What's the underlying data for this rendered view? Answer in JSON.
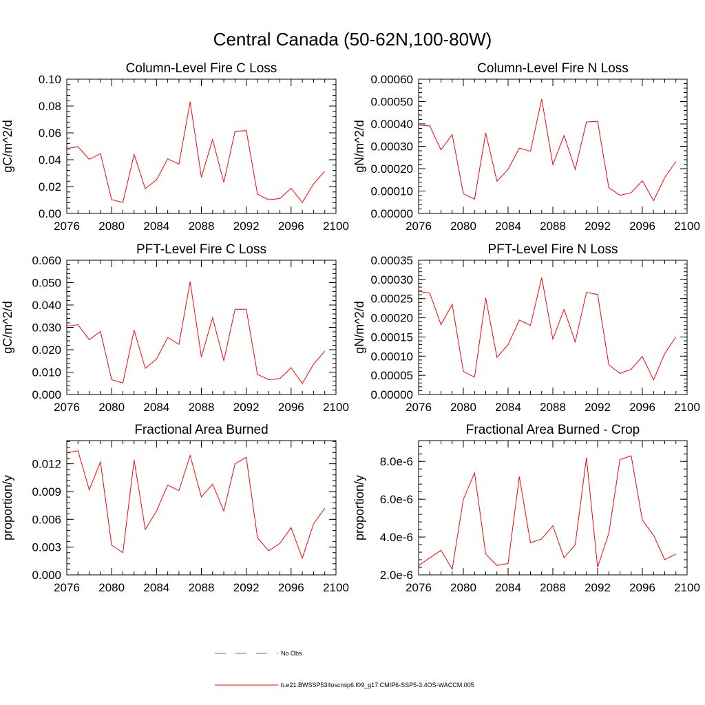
{
  "figure": {
    "title": "Central Canada (50-62N,100-80W)"
  },
  "legend": {
    "obs_label": "No Obs",
    "obs_color": "#6666cc",
    "model_label": "b.e21.BWSSP534oscmip6.f09_g17.CMIP6-SSP5-3.4OS-WACCM.005",
    "model_color": "#ff0000"
  },
  "chart_data": [
    {
      "type": "line",
      "title": "Column-Level Fire C Loss",
      "ylabel": "gC/m^2/d",
      "xlim": [
        2076,
        2100
      ],
      "xticks": [
        "2076",
        "2080",
        "2084",
        "2088",
        "2092",
        "2096",
        "2100"
      ],
      "ylim": [
        0,
        0.1
      ],
      "yticks": [
        "0.00",
        "0.02",
        "0.04",
        "0.06",
        "0.08",
        "0.10"
      ],
      "x": [
        2076,
        2077,
        2078,
        2079,
        2080,
        2081,
        2082,
        2083,
        2084,
        2085,
        2086,
        2087,
        2088,
        2089,
        2090,
        2091,
        2092,
        2093,
        2094,
        2095,
        2096,
        2097,
        2098,
        2099
      ],
      "series": [
        {
          "name": "b.e21.BWSSP534oscmip6.f09_g17.CMIP6-SSP5-3.4OS-WACCM.005",
          "values": [
            0.0483,
            0.0497,
            0.0403,
            0.0445,
            0.0102,
            0.0082,
            0.044,
            0.0184,
            0.025,
            0.0407,
            0.0367,
            0.0832,
            0.027,
            0.0551,
            0.0232,
            0.0612,
            0.0617,
            0.0143,
            0.0102,
            0.0111,
            0.0187,
            0.0082,
            0.0219,
            0.0316
          ]
        }
      ]
    },
    {
      "type": "line",
      "title": "Column-Level Fire N Loss",
      "ylabel": "gN/m^2/d",
      "xlim": [
        2076,
        2100
      ],
      "xticks": [
        "2076",
        "2080",
        "2084",
        "2088",
        "2092",
        "2096",
        "2100"
      ],
      "ylim": [
        0,
        0.0006
      ],
      "yticks": [
        "0.00000",
        "0.00010",
        "0.00020",
        "0.00030",
        "0.00040",
        "0.00050",
        "0.00060"
      ],
      "x": [
        2076,
        2077,
        2078,
        2079,
        2080,
        2081,
        2082,
        2083,
        2084,
        2085,
        2086,
        2087,
        2088,
        2089,
        2090,
        2091,
        2092,
        2093,
        2094,
        2095,
        2096,
        2097,
        2098,
        2099
      ],
      "series": [
        {
          "name": "b.e21.BWSSP534oscmip6.f09_g17.CMIP6-SSP5-3.4OS-WACCM.005",
          "values": [
            0.000395,
            0.000391,
            0.000284,
            0.000352,
            8.8e-05,
            6.4e-05,
            0.00036,
            0.000144,
            0.000197,
            0.000292,
            0.000278,
            0.000511,
            0.000218,
            0.000348,
            0.000197,
            0.000409,
            0.000412,
            0.000115,
            8.1e-05,
            9.3e-05,
            0.000146,
            5.7e-05,
            0.00016,
            0.000232
          ]
        }
      ]
    },
    {
      "type": "line",
      "title": "PFT-Level Fire C Loss",
      "ylabel": "gC/m^2/d",
      "xlim": [
        2076,
        2100
      ],
      "xticks": [
        "2076",
        "2080",
        "2084",
        "2088",
        "2092",
        "2096",
        "2100"
      ],
      "ylim": [
        0,
        0.06
      ],
      "yticks": [
        "0.000",
        "0.010",
        "0.020",
        "0.030",
        "0.040",
        "0.050",
        "0.060"
      ],
      "x": [
        2076,
        2077,
        2078,
        2079,
        2080,
        2081,
        2082,
        2083,
        2084,
        2085,
        2086,
        2087,
        2088,
        2089,
        2090,
        2091,
        2092,
        2093,
        2094,
        2095,
        2096,
        2097,
        2098,
        2099
      ],
      "series": [
        {
          "name": "b.e21.BWSSP534oscmip6.f09_g17.CMIP6-SSP5-3.4OS-WACCM.005",
          "values": [
            0.0306,
            0.0312,
            0.0245,
            0.0282,
            0.0066,
            0.0051,
            0.0288,
            0.0117,
            0.0158,
            0.0255,
            0.0224,
            0.0505,
            0.0168,
            0.0343,
            0.0151,
            0.0381,
            0.0381,
            0.009,
            0.0066,
            0.0071,
            0.012,
            0.0049,
            0.0135,
            0.0194
          ]
        }
      ]
    },
    {
      "type": "line",
      "title": "PFT-Level Fire N Loss",
      "ylabel": "gN/m^2/d",
      "xlim": [
        2076,
        2100
      ],
      "xticks": [
        "2076",
        "2080",
        "2084",
        "2088",
        "2092",
        "2096",
        "2100"
      ],
      "ylim": [
        0,
        0.00035
      ],
      "yticks": [
        "0.00000",
        "0.00005",
        "0.00010",
        "0.00015",
        "0.00020",
        "0.00025",
        "0.00030",
        "0.00035"
      ],
      "x": [
        2076,
        2077,
        2078,
        2079,
        2080,
        2081,
        2082,
        2083,
        2084,
        2085,
        2086,
        2087,
        2088,
        2089,
        2090,
        2091,
        2092,
        2093,
        2094,
        2095,
        2096,
        2097,
        2098,
        2099
      ],
      "series": [
        {
          "name": "b.e21.BWSSP534oscmip6.f09_g17.CMIP6-SSP5-3.4OS-WACCM.005",
          "values": [
            0.000269,
            0.000264,
            0.000182,
            0.000235,
            6e-05,
            4.5e-05,
            0.000252,
            9.7e-05,
            0.00013,
            0.000194,
            0.00018,
            0.000305,
            0.000144,
            0.000222,
            0.000137,
            0.000266,
            0.000261,
            7.7e-05,
            5.5e-05,
            6.6e-05,
            9.9e-05,
            3.8e-05,
            0.000107,
            0.00015
          ]
        }
      ]
    },
    {
      "type": "line",
      "title": "Fractional Area Burned",
      "ylabel": "proportion/y",
      "xlim": [
        2076,
        2100
      ],
      "xticks": [
        "2076",
        "2080",
        "2084",
        "2088",
        "2092",
        "2096",
        "2100"
      ],
      "ylim": [
        0,
        0.0145
      ],
      "yticks": [
        "0.000",
        "0.003",
        "0.006",
        "0.009",
        "0.012"
      ],
      "ytick_values": [
        0,
        0.003,
        0.006,
        0.009,
        0.012
      ],
      "x": [
        2076,
        2077,
        2078,
        2079,
        2080,
        2081,
        2082,
        2083,
        2084,
        2085,
        2086,
        2087,
        2088,
        2089,
        2090,
        2091,
        2092,
        2093,
        2094,
        2095,
        2096,
        2097,
        2098,
        2099
      ],
      "series": [
        {
          "name": "b.e21.BWSSP534oscmip6.f09_g17.CMIP6-SSP5-3.4OS-WACCM.005",
          "values": [
            0.0132,
            0.0134,
            0.0092,
            0.0122,
            0.0032,
            0.0024,
            0.0124,
            0.0049,
            0.0069,
            0.0097,
            0.0091,
            0.0129,
            0.0084,
            0.0098,
            0.0069,
            0.012,
            0.0127,
            0.004,
            0.0026,
            0.0034,
            0.0051,
            0.0018,
            0.0055,
            0.0072
          ]
        }
      ]
    },
    {
      "type": "line",
      "title": "Fractional Area Burned - Crop",
      "ylabel": "proportion/y",
      "xlim": [
        2076,
        2100
      ],
      "xticks": [
        "2076",
        "2080",
        "2084",
        "2088",
        "2092",
        "2096",
        "2100"
      ],
      "ylim": [
        2e-06,
        9.1e-06
      ],
      "yticks": [
        "2.0e-6",
        "4.0e-6",
        "6.0e-6",
        "8.0e-6"
      ],
      "ytick_values": [
        2e-06,
        4e-06,
        6e-06,
        8e-06
      ],
      "x": [
        2076,
        2077,
        2078,
        2079,
        2080,
        2081,
        2082,
        2083,
        2084,
        2085,
        2086,
        2087,
        2088,
        2089,
        2090,
        2091,
        2092,
        2093,
        2094,
        2095,
        2096,
        2097,
        2098,
        2099
      ],
      "series": [
        {
          "name": "b.e21.BWSSP534oscmip6.f09_g17.CMIP6-SSP5-3.4OS-WACCM.005",
          "values": [
            2.5e-06,
            2.9e-06,
            3.3e-06,
            2.3e-06,
            6e-06,
            7.4e-06,
            3.1e-06,
            2.5e-06,
            2.6e-06,
            7.2e-06,
            3.7e-06,
            3.9e-06,
            4.6e-06,
            2.9e-06,
            3.6e-06,
            8.2e-06,
            2.4e-06,
            4.2e-06,
            8.1e-06,
            8.3e-06,
            4.9e-06,
            4.1e-06,
            2.8e-06,
            3.1e-06
          ]
        }
      ]
    }
  ]
}
